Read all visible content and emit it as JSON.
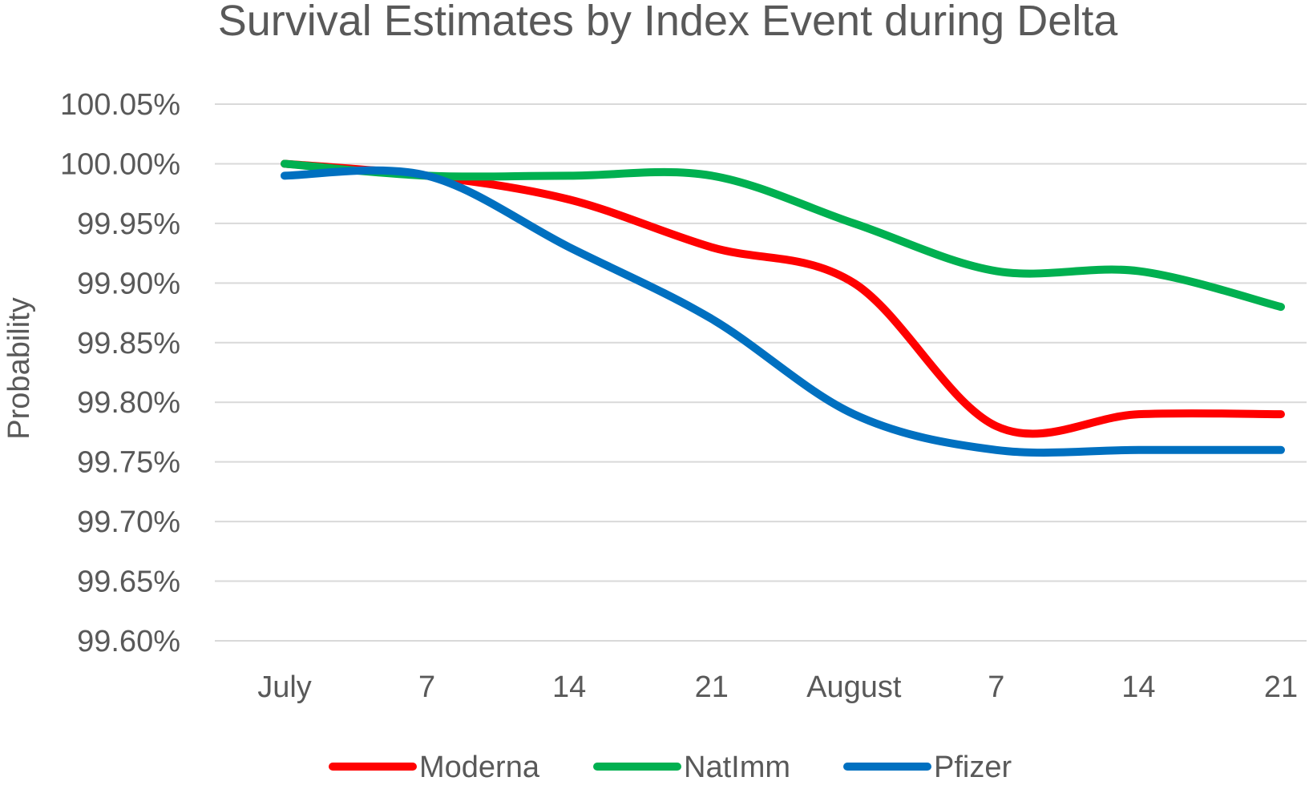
{
  "chart_data": {
    "type": "line",
    "title": "Survival Estimates by Index Event during Delta",
    "xlabel": "",
    "ylabel": "Probability",
    "categories": [
      "July",
      "7",
      "14",
      "21",
      "August",
      "7",
      "14",
      "21"
    ],
    "ylim": [
      99.6,
      100.05
    ],
    "yticks": [
      "100.05%",
      "100.00%",
      "99.95%",
      "99.90%",
      "99.85%",
      "99.80%",
      "99.75%",
      "99.70%",
      "99.65%",
      "99.60%"
    ],
    "ytick_values": [
      100.05,
      100.0,
      99.95,
      99.9,
      99.85,
      99.8,
      99.75,
      99.7,
      99.65,
      99.6
    ],
    "grid": true,
    "smooth": true,
    "legend_position": "bottom",
    "series": [
      {
        "name": "Moderna",
        "color": "#ff0000",
        "values": [
          100.0,
          99.99,
          99.97,
          99.93,
          99.9,
          99.78,
          99.79,
          99.79
        ]
      },
      {
        "name": "NatImm",
        "color": "#00b050",
        "values": [
          100.0,
          99.99,
          99.99,
          99.99,
          99.95,
          99.91,
          99.91,
          99.88
        ]
      },
      {
        "name": "Pfizer",
        "color": "#0070c0",
        "values": [
          99.99,
          99.99,
          99.93,
          99.87,
          99.79,
          99.76,
          99.76,
          99.76
        ]
      }
    ]
  }
}
